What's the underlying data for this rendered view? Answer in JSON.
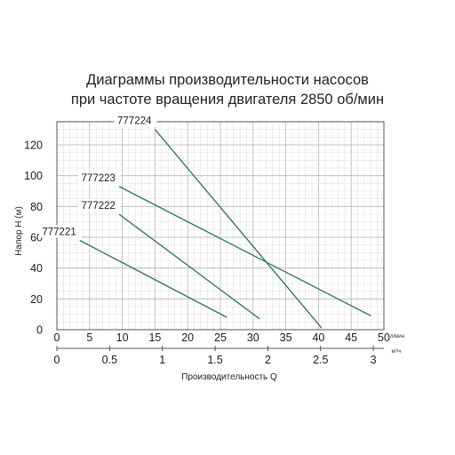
{
  "title_line1": "Диаграммы производительности насосов",
  "title_line2": "при частоте вращения двигателя 2850 об/мин",
  "chart_data": {
    "type": "line",
    "xlabel": "Производительность  Q",
    "ylabel": "Напор H (м)",
    "x_unit_primary": "л/мин",
    "x_unit_secondary": "м³/ч",
    "xlim": [
      0,
      50
    ],
    "ylim": [
      0,
      135
    ],
    "x_ticks_primary": [
      0,
      5,
      10,
      15,
      20,
      25,
      30,
      35,
      40,
      45,
      50
    ],
    "x_ticks_secondary": [
      0,
      0.5,
      1,
      1.5,
      2,
      2.5,
      3
    ],
    "y_ticks": [
      0,
      20,
      40,
      60,
      80,
      100,
      120
    ],
    "grid": true,
    "series": [
      {
        "name": "777221",
        "x": [
          3.5,
          26
        ],
        "y": [
          58,
          8
        ]
      },
      {
        "name": "777222",
        "x": [
          9.5,
          31
        ],
        "y": [
          75,
          7
        ]
      },
      {
        "name": "777223",
        "x": [
          9.5,
          48
        ],
        "y": [
          93,
          9
        ]
      },
      {
        "name": "777224",
        "x": [
          15,
          40.5
        ],
        "y": [
          130,
          1
        ]
      }
    ]
  }
}
